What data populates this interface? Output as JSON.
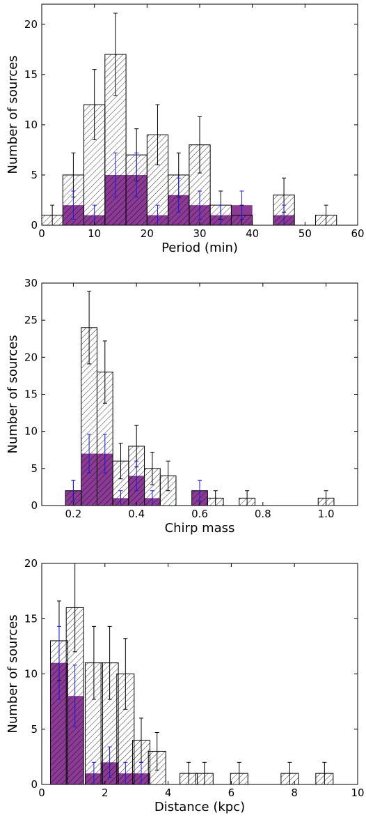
{
  "chart_data": [
    {
      "type": "bar",
      "xlabel": "Period (min)",
      "ylabel": "Number of sources",
      "xlim": [
        0,
        60
      ],
      "ylim": [
        0,
        22
      ],
      "xticks": [
        0,
        10,
        20,
        30,
        40,
        50,
        60
      ],
      "yticks": [
        0,
        5,
        10,
        15,
        20
      ],
      "bin_width": 4,
      "series": [
        {
          "style": "hatched",
          "x": [
            2,
            6,
            10,
            14,
            18,
            22,
            26,
            30,
            34,
            38,
            46,
            54
          ],
          "values": [
            1,
            5,
            12,
            17,
            7,
            9,
            5,
            8,
            2,
            1,
            3,
            1
          ],
          "err": [
            1.0,
            2.2,
            3.5,
            4.1,
            2.6,
            3.0,
            2.2,
            2.8,
            1.4,
            1.0,
            1.7,
            1.0
          ]
        },
        {
          "style": "filled",
          "x": [
            6,
            10,
            14,
            18,
            22,
            26,
            30,
            34,
            38,
            46
          ],
          "values": [
            2,
            1,
            5,
            5,
            1,
            3,
            2,
            1,
            2,
            1
          ],
          "err": [
            1.4,
            1.0,
            2.2,
            2.2,
            1.0,
            1.7,
            1.4,
            1.0,
            1.4,
            1.0
          ]
        }
      ],
      "colors": {
        "hatched_edge": "#000000",
        "filled": "#8b3a96",
        "err_hatched": "#000000",
        "err_filled": "#1a1ad4"
      }
    },
    {
      "type": "bar",
      "xlabel": "Chirp mass",
      "ylabel": "Number of sources",
      "xlim": [
        0.1,
        1.1
      ],
      "ylim": [
        0,
        30
      ],
      "xticks": [
        "0.2",
        "0.4",
        "0.6",
        "0.8",
        "1.0"
      ],
      "yticks": [
        0,
        5,
        10,
        15,
        20,
        25,
        30
      ],
      "bin_width": 0.05,
      "series": [
        {
          "style": "hatched",
          "x": [
            0.2,
            0.25,
            0.3,
            0.35,
            0.4,
            0.45,
            0.5,
            0.6,
            0.65,
            0.75,
            1.0
          ],
          "values": [
            2,
            24,
            18,
            6,
            8,
            5,
            4,
            2,
            1,
            1,
            1
          ],
          "err": [
            1.4,
            4.9,
            4.2,
            2.4,
            2.8,
            2.2,
            2.0,
            1.4,
            1.0,
            1.0,
            1.0
          ]
        },
        {
          "style": "filled",
          "x": [
            0.2,
            0.25,
            0.3,
            0.35,
            0.4,
            0.45,
            0.6
          ],
          "values": [
            2,
            7,
            7,
            1,
            4,
            1,
            2
          ],
          "err": [
            1.4,
            2.6,
            2.6,
            1.0,
            2.0,
            1.0,
            1.4
          ]
        }
      ],
      "colors": {
        "hatched_edge": "#000000",
        "filled": "#8b3a96",
        "err_hatched": "#000000",
        "err_filled": "#1a1ad4"
      }
    },
    {
      "type": "bar",
      "xlabel": "Distance (kpc)",
      "ylabel": "Number of sources",
      "xlim": [
        0,
        10
      ],
      "ylim": [
        0,
        20
      ],
      "xticks": [
        0,
        2,
        4,
        6,
        8,
        10
      ],
      "yticks": [
        0,
        5,
        10,
        15,
        20
      ],
      "bin_width": 0.55,
      "series": [
        {
          "style": "hatched",
          "x": [
            0.55,
            1.05,
            1.65,
            2.15,
            2.65,
            3.15,
            3.65,
            4.65,
            5.15,
            6.25,
            7.85,
            8.95
          ],
          "values": [
            13,
            16,
            11,
            11,
            10,
            4,
            3,
            1,
            1,
            1,
            1,
            1
          ],
          "err": [
            3.6,
            4.0,
            3.3,
            3.3,
            3.2,
            2.0,
            1.7,
            1.0,
            1.0,
            1.0,
            1.0,
            1.0
          ]
        },
        {
          "style": "filled",
          "x": [
            0.55,
            1.05,
            1.65,
            2.15,
            2.65,
            3.15
          ],
          "values": [
            11,
            8,
            1,
            2,
            1,
            1
          ],
          "err": [
            3.3,
            2.8,
            1.0,
            1.4,
            1.0,
            1.0
          ]
        }
      ],
      "colors": {
        "hatched_edge": "#000000",
        "filled": "#8b3a96",
        "err_hatched": "#000000",
        "err_filled": "#1a1ad4"
      }
    }
  ]
}
